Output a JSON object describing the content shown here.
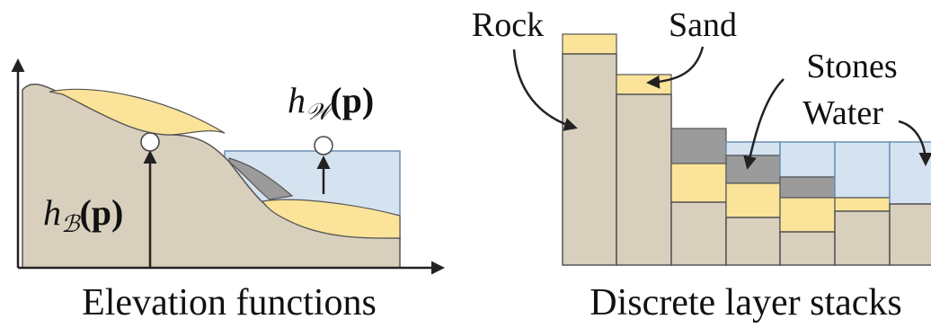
{
  "left": {
    "h_water": {
      "base": "h",
      "sub": "𝒲",
      "arg": "(p)"
    },
    "h_bedrock": {
      "base": "h",
      "sub": "ℬ",
      "arg": "(p)"
    },
    "caption": "Elevation functions"
  },
  "right": {
    "labels": [
      "Rock",
      "Sand",
      "Stones",
      "Water"
    ],
    "caption": "Discrete layer stacks"
  }
}
